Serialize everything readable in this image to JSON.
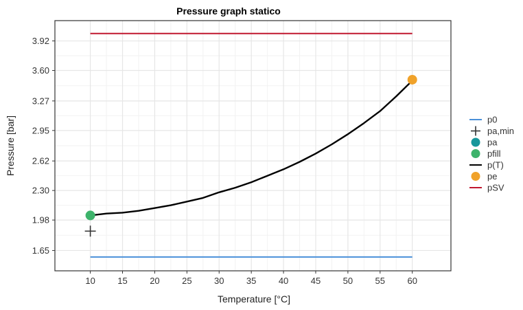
{
  "chart_data": {
    "type": "line",
    "title": "Pressure graph statico",
    "xlabel": "Temperature [°C]",
    "ylabel": "Pressure [bar]",
    "xlim": [
      4.5,
      66
    ],
    "ylim": [
      1.43,
      4.14
    ],
    "x_ticks": [
      10,
      15,
      20,
      25,
      30,
      35,
      40,
      45,
      50,
      55,
      60
    ],
    "y_ticks": [
      1.65,
      1.98,
      2.3,
      2.62,
      2.95,
      3.27,
      3.6,
      3.92
    ],
    "y_tick_labels": [
      "1.65",
      "1.98",
      "2.30",
      "2.62",
      "2.95",
      "3.27",
      "3.60",
      "3.92"
    ],
    "grid": true,
    "legend_position": "right",
    "series": [
      {
        "name": "p0",
        "kind": "line",
        "color": "#4a90d9",
        "x": [
          10,
          60
        ],
        "y": [
          1.58,
          1.58
        ]
      },
      {
        "name": "pa,min",
        "kind": "plus-marker",
        "color": "#333333",
        "x": [
          10
        ],
        "y": [
          1.86
        ]
      },
      {
        "name": "pa",
        "kind": "point",
        "color": "#17979b",
        "x": [],
        "y": []
      },
      {
        "name": "pfill",
        "kind": "point",
        "color": "#3db36b",
        "x": [
          10
        ],
        "y": [
          2.03
        ]
      },
      {
        "name": "p(T)",
        "kind": "line",
        "color": "#000000",
        "x": [
          10,
          12.5,
          15,
          17.5,
          20,
          22.5,
          25,
          27.5,
          30,
          32.5,
          35,
          37.5,
          40,
          42.5,
          45,
          47.5,
          50,
          52.5,
          55,
          57.5,
          60
        ],
        "y": [
          2.03,
          2.05,
          2.06,
          2.08,
          2.11,
          2.14,
          2.18,
          2.22,
          2.28,
          2.33,
          2.39,
          2.46,
          2.53,
          2.61,
          2.7,
          2.8,
          2.91,
          3.03,
          3.16,
          3.32,
          3.49
        ]
      },
      {
        "name": "pe",
        "kind": "point",
        "color": "#f0a22a",
        "x": [
          60
        ],
        "y": [
          3.5
        ]
      },
      {
        "name": "pSV",
        "kind": "line",
        "color": "#c0172e",
        "x": [
          10,
          60
        ],
        "y": [
          4.0,
          4.0
        ]
      }
    ]
  }
}
